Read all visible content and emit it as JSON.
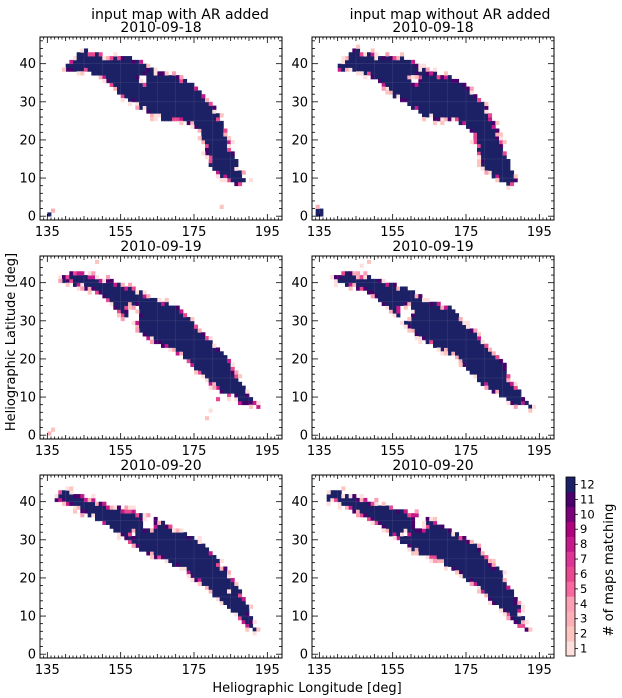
{
  "figure": {
    "xlabel": "Heliographic Longitude [deg]",
    "ylabel": "Heliographic Latitude [deg]",
    "colorbar_label": "# of maps matching",
    "column_titles": [
      "input map with AR added",
      "input map without AR added"
    ],
    "colors": {
      "1": "#fde0dd",
      "2": "#fcc5c0",
      "3": "#fbb0b8",
      "4": "#fa9fb5",
      "5": "#f768a1",
      "6": "#e7488f",
      "7": "#dd3497",
      "8": "#c51b8a",
      "9": "#ae017e",
      "10": "#7a0177",
      "11": "#49006a",
      "12": "#1c2166"
    }
  },
  "chart_data": [
    {
      "type": "heatmap",
      "title": "2010-09-18",
      "column_title": "input map with AR added",
      "xlabel": "",
      "ylabel": "",
      "xlim": [
        133,
        199
      ],
      "ylim": [
        -1,
        47
      ],
      "xticks": [
        135,
        155,
        175,
        195
      ],
      "yticks": [
        0,
        10,
        20,
        30,
        40
      ],
      "top": [
        [
          139,
          39
        ],
        [
          142,
          41
        ],
        [
          145,
          44
        ],
        [
          148,
          43
        ],
        [
          152,
          42
        ],
        [
          156,
          42
        ],
        [
          160,
          41
        ],
        [
          165,
          38
        ],
        [
          170,
          37
        ],
        [
          174,
          35
        ],
        [
          178,
          32
        ],
        [
          181,
          28
        ],
        [
          184,
          22
        ],
        [
          186,
          16
        ],
        [
          188,
          11
        ],
        [
          189,
          9
        ]
      ],
      "bottom": [
        [
          189,
          9
        ],
        [
          187,
          8
        ],
        [
          185,
          9
        ],
        [
          183,
          10
        ],
        [
          180,
          12
        ],
        [
          178,
          18
        ],
        [
          176,
          23
        ],
        [
          172,
          25
        ],
        [
          168,
          25
        ],
        [
          164,
          26
        ],
        [
          161,
          28
        ],
        [
          158,
          30
        ],
        [
          156,
          31
        ],
        [
          153,
          34
        ],
        [
          150,
          36
        ],
        [
          146,
          38
        ],
        [
          142,
          38
        ],
        [
          139,
          39
        ]
      ],
      "holes": [
        [
          160,
          35,
          2,
          2
        ],
        [
          172,
          21,
          2,
          2
        ],
        [
          178,
          14,
          1,
          1
        ],
        [
          155,
          29,
          1,
          1
        ]
      ],
      "specks": [
        [
          135,
          0,
          12
        ],
        [
          136,
          1,
          3
        ],
        [
          182,
          2,
          2
        ],
        [
          190,
          9,
          1
        ]
      ]
    },
    {
      "type": "heatmap",
      "title": "2010-09-18",
      "column_title": "input map without AR added",
      "xlabel": "",
      "ylabel": "",
      "xlim": [
        133,
        199
      ],
      "ylim": [
        -1,
        47
      ],
      "xticks": [
        135,
        155,
        175,
        195
      ],
      "yticks": [
        0,
        10,
        20,
        30,
        40
      ],
      "top": [
        [
          139,
          39
        ],
        [
          142,
          41
        ],
        [
          145,
          44
        ],
        [
          148,
          43
        ],
        [
          152,
          42
        ],
        [
          156,
          42
        ],
        [
          160,
          41
        ],
        [
          165,
          38
        ],
        [
          170,
          37
        ],
        [
          174,
          35
        ],
        [
          178,
          32
        ],
        [
          181,
          28
        ],
        [
          184,
          22
        ],
        [
          186,
          16
        ],
        [
          188,
          11
        ],
        [
          189,
          9
        ]
      ],
      "bottom": [
        [
          189,
          9
        ],
        [
          187,
          8
        ],
        [
          185,
          9
        ],
        [
          183,
          10
        ],
        [
          180,
          12
        ],
        [
          178,
          18
        ],
        [
          176,
          23
        ],
        [
          172,
          25
        ],
        [
          168,
          25
        ],
        [
          164,
          26
        ],
        [
          161,
          28
        ],
        [
          158,
          30
        ],
        [
          156,
          31
        ],
        [
          153,
          34
        ],
        [
          150,
          36
        ],
        [
          146,
          38
        ],
        [
          142,
          38
        ],
        [
          139,
          39
        ]
      ],
      "holes": [
        [
          160,
          35,
          2,
          2
        ],
        [
          172,
          21,
          2,
          2
        ],
        [
          178,
          14,
          1,
          1
        ],
        [
          155,
          29,
          1,
          1
        ]
      ],
      "specks": [
        [
          134,
          0,
          12
        ],
        [
          135,
          0,
          12
        ],
        [
          134,
          1,
          12
        ],
        [
          135,
          1,
          12
        ],
        [
          134,
          2,
          3
        ]
      ]
    },
    {
      "type": "heatmap",
      "title": "2010-09-19",
      "column_title": "",
      "xlabel": "",
      "ylabel": "",
      "xlim": [
        133,
        199
      ],
      "ylim": [
        -1,
        47
      ],
      "xticks": [
        135,
        155,
        175,
        195
      ],
      "yticks": [
        0,
        10,
        20,
        30,
        40
      ],
      "top": [
        [
          137,
          41
        ],
        [
          140,
          42
        ],
        [
          143,
          43
        ],
        [
          147,
          42
        ],
        [
          152,
          41
        ],
        [
          158,
          39
        ],
        [
          164,
          36
        ],
        [
          170,
          34
        ],
        [
          176,
          29
        ],
        [
          181,
          24
        ],
        [
          185,
          20
        ],
        [
          187,
          15
        ],
        [
          190,
          11
        ],
        [
          193,
          7
        ]
      ],
      "bottom": [
        [
          193,
          7
        ],
        [
          191,
          8
        ],
        [
          188,
          8
        ],
        [
          186,
          10
        ],
        [
          183,
          11
        ],
        [
          180,
          13
        ],
        [
          177,
          16
        ],
        [
          174,
          19
        ],
        [
          171,
          21
        ],
        [
          167,
          23
        ],
        [
          163,
          25
        ],
        [
          160,
          27
        ],
        [
          158,
          30
        ],
        [
          156,
          31
        ],
        [
          153,
          34
        ],
        [
          150,
          37
        ],
        [
          146,
          38
        ],
        [
          141,
          40
        ],
        [
          137,
          41
        ]
      ],
      "holes": [
        [
          157,
          30,
          3,
          4
        ],
        [
          185,
          10,
          1,
          1
        ]
      ],
      "specks": [
        [
          135,
          0,
          3
        ],
        [
          136,
          1,
          2
        ],
        [
          148,
          45,
          2
        ],
        [
          178,
          4,
          2
        ],
        [
          179,
          6,
          1
        ],
        [
          181,
          9,
          6
        ]
      ]
    },
    {
      "type": "heatmap",
      "title": "2010-09-19",
      "column_title": "",
      "xlabel": "",
      "ylabel": "",
      "xlim": [
        133,
        199
      ],
      "ylim": [
        -1,
        47
      ],
      "xticks": [
        135,
        155,
        175,
        195
      ],
      "yticks": [
        0,
        10,
        20,
        30,
        40
      ],
      "top": [
        [
          137,
          41
        ],
        [
          140,
          42
        ],
        [
          143,
          43
        ],
        [
          147,
          42
        ],
        [
          152,
          41
        ],
        [
          158,
          39
        ],
        [
          164,
          36
        ],
        [
          170,
          34
        ],
        [
          176,
          29
        ],
        [
          181,
          24
        ],
        [
          185,
          20
        ],
        [
          187,
          15
        ],
        [
          190,
          11
        ],
        [
          193,
          7
        ]
      ],
      "bottom": [
        [
          193,
          7
        ],
        [
          191,
          8
        ],
        [
          188,
          8
        ],
        [
          186,
          10
        ],
        [
          183,
          11
        ],
        [
          180,
          13
        ],
        [
          177,
          16
        ],
        [
          174,
          19
        ],
        [
          171,
          21
        ],
        [
          167,
          23
        ],
        [
          163,
          25
        ],
        [
          160,
          27
        ],
        [
          158,
          30
        ],
        [
          156,
          31
        ],
        [
          153,
          34
        ],
        [
          150,
          37
        ],
        [
          146,
          38
        ],
        [
          141,
          40
        ],
        [
          137,
          41
        ]
      ],
      "holes": [
        [
          157,
          30,
          3,
          4
        ]
      ],
      "specks": [
        [
          148,
          45,
          2
        ],
        [
          146,
          44,
          1
        ]
      ]
    },
    {
      "type": "heatmap",
      "title": "2010-09-20",
      "column_title": "",
      "xlabel": "",
      "ylabel": "",
      "xlim": [
        133,
        199
      ],
      "ylim": [
        -1,
        47
      ],
      "xticks": [
        135,
        155,
        175,
        195
      ],
      "yticks": [
        0,
        10,
        20,
        30,
        40
      ],
      "top": [
        [
          136,
          41
        ],
        [
          139,
          43
        ],
        [
          143,
          42
        ],
        [
          147,
          41
        ],
        [
          152,
          39
        ],
        [
          158,
          38
        ],
        [
          164,
          36
        ],
        [
          170,
          33
        ],
        [
          176,
          30
        ],
        [
          181,
          26
        ],
        [
          185,
          21
        ],
        [
          188,
          16
        ],
        [
          190,
          12
        ],
        [
          192,
          6
        ]
      ],
      "bottom": [
        [
          192,
          6
        ],
        [
          190,
          7
        ],
        [
          187,
          10
        ],
        [
          183,
          13
        ],
        [
          180,
          16
        ],
        [
          176,
          19
        ],
        [
          172,
          22
        ],
        [
          168,
          24
        ],
        [
          163,
          26
        ],
        [
          158,
          29
        ],
        [
          155,
          31
        ],
        [
          151,
          34
        ],
        [
          147,
          36
        ],
        [
          143,
          38
        ],
        [
          139,
          40
        ],
        [
          136,
          41
        ]
      ],
      "holes": [
        [
          161,
          33,
          3,
          3
        ],
        [
          158,
          31,
          1,
          1
        ],
        [
          182,
          23,
          2,
          2
        ]
      ],
      "specks": [
        [
          141,
          43,
          2
        ],
        [
          184,
          16,
          1
        ]
      ]
    },
    {
      "type": "heatmap",
      "title": "2010-09-20",
      "column_title": "",
      "xlabel": "",
      "ylabel": "",
      "xlim": [
        133,
        199
      ],
      "ylim": [
        -1,
        47
      ],
      "xticks": [
        135,
        155,
        175,
        195
      ],
      "yticks": [
        0,
        10,
        20,
        30,
        40
      ],
      "top": [
        [
          136,
          41
        ],
        [
          139,
          43
        ],
        [
          143,
          42
        ],
        [
          147,
          41
        ],
        [
          152,
          39
        ],
        [
          158,
          38
        ],
        [
          164,
          36
        ],
        [
          170,
          33
        ],
        [
          176,
          30
        ],
        [
          181,
          26
        ],
        [
          185,
          21
        ],
        [
          188,
          16
        ],
        [
          190,
          12
        ],
        [
          192,
          6
        ]
      ],
      "bottom": [
        [
          192,
          6
        ],
        [
          190,
          7
        ],
        [
          187,
          10
        ],
        [
          183,
          13
        ],
        [
          180,
          16
        ],
        [
          176,
          19
        ],
        [
          172,
          22
        ],
        [
          168,
          24
        ],
        [
          163,
          26
        ],
        [
          158,
          29
        ],
        [
          155,
          31
        ],
        [
          151,
          34
        ],
        [
          147,
          36
        ],
        [
          143,
          38
        ],
        [
          139,
          40
        ],
        [
          136,
          41
        ]
      ],
      "holes": [
        [
          161,
          33,
          3,
          3
        ],
        [
          158,
          31,
          1,
          1
        ],
        [
          182,
          23,
          2,
          2
        ]
      ],
      "specks": [
        [
          141,
          43,
          2
        ]
      ]
    }
  ],
  "colorbar": {
    "ticks": [
      1,
      2,
      3,
      4,
      5,
      6,
      7,
      8,
      9,
      10,
      11,
      12
    ]
  }
}
